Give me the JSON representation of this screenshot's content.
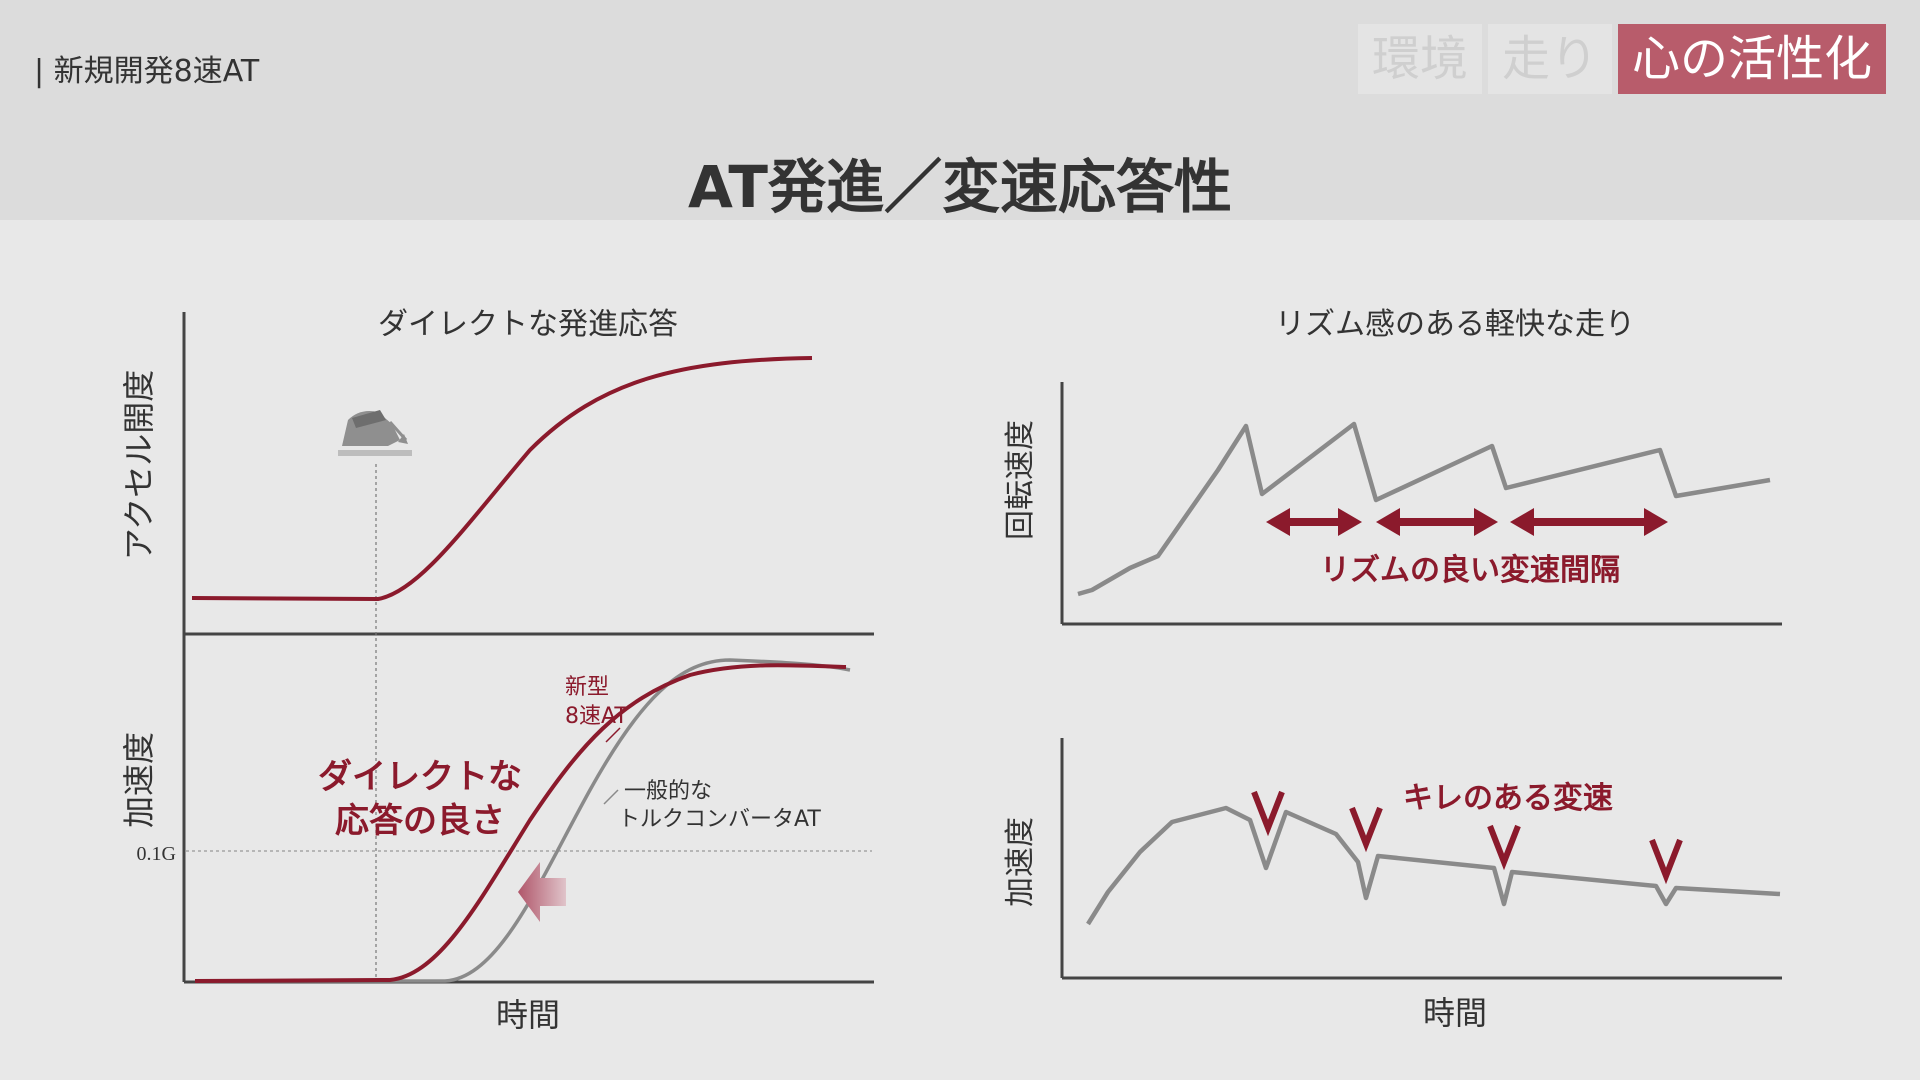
{
  "header": {
    "breadcrumb": "| 新規開発8速AT",
    "tags": [
      {
        "label": "環境",
        "active": false
      },
      {
        "label": "走り",
        "active": false
      },
      {
        "label": "心の活性化",
        "active": true
      }
    ],
    "title": "AT発進／変速応答性"
  },
  "left": {
    "title": "ダイレクトな発進応答",
    "ylabel_top": "アクセル開度",
    "ylabel_bottom": "加速度",
    "tick_label": "0.1G",
    "xlabel": "時間",
    "new_label_line1": "新型",
    "new_label_line2": "8速AT",
    "old_label_line1": "一般的な",
    "old_label_line2": "トルクコンバータAT",
    "callout_line1": "ダイレクトな",
    "callout_line2": "応答の良さ"
  },
  "right": {
    "title": "リズム感のある軽快な走り",
    "ylabel_top": "回転速度",
    "ylabel_bottom": "加速度",
    "xlabel": "時間",
    "rhythm_label": "リズムの良い変速間隔",
    "kire_label": "キレのある変速"
  },
  "colors": {
    "accent": "#8b1a2c",
    "gray_line": "#8a8a8a",
    "axis": "#444444",
    "tag_active": "#b85c6b"
  },
  "icons": {
    "pedal": "pedal-foot-icon"
  }
}
